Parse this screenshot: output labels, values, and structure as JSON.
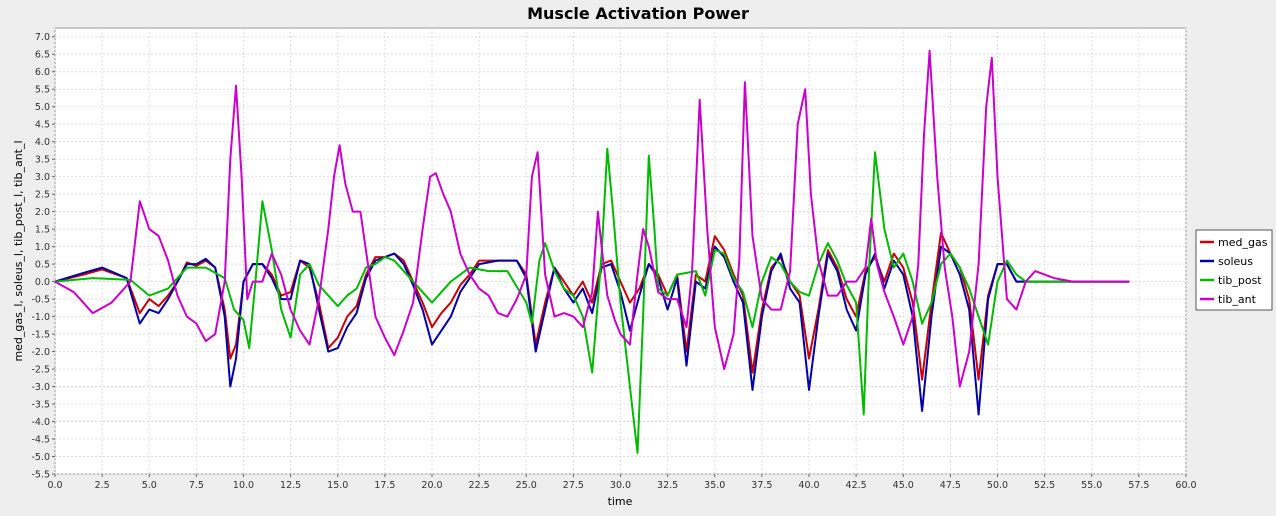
{
  "chart_data": {
    "type": "line",
    "title": "Muscle Activation Power",
    "xlabel": "time",
    "ylabel": "med_gas_l, soleus_l, tib_post_l, tib_ant_l",
    "xlim": [
      0,
      60
    ],
    "ylim": [
      -5.5,
      7.25
    ],
    "x_ticks": [
      "0.0",
      "2.5",
      "5.0",
      "7.5",
      "10.0",
      "12.5",
      "15.0",
      "17.5",
      "20.0",
      "22.5",
      "25.0",
      "27.5",
      "30.0",
      "32.5",
      "35.0",
      "37.5",
      "40.0",
      "42.5",
      "45.0",
      "47.5",
      "50.0",
      "52.5",
      "55.0",
      "57.5",
      "60.0"
    ],
    "y_ticks": [
      "-5.5",
      "-5.0",
      "-4.5",
      "-4.0",
      "-3.5",
      "-3.0",
      "-2.5",
      "-2.0",
      "-1.5",
      "-1.0",
      "-0.5",
      "0.0",
      "0.5",
      "1.0",
      "1.5",
      "2.0",
      "2.5",
      "3.0",
      "3.5",
      "4.0",
      "4.5",
      "5.0",
      "5.5",
      "6.0",
      "6.5",
      "7.0"
    ],
    "grid": true,
    "legend_position": "right",
    "series": [
      {
        "name": "med_gas",
        "color": "#cc0000",
        "x": [
          0,
          1.5,
          2.5,
          3.8,
          4.5,
          5.0,
          5.5,
          6.0,
          6.5,
          7.0,
          7.5,
          8.0,
          8.5,
          9.0,
          9.3,
          9.6,
          10.0,
          10.5,
          11.0,
          11.5,
          12.0,
          12.5,
          13.0,
          13.5,
          14.0,
          14.5,
          15.0,
          15.5,
          16.0,
          16.5,
          17.0,
          17.5,
          18.0,
          18.5,
          19.0,
          19.5,
          20.0,
          20.5,
          21.0,
          21.5,
          22.0,
          22.5,
          23.5,
          24.5,
          25.0,
          25.5,
          26.0,
          26.5,
          27.0,
          27.5,
          28.0,
          28.5,
          29.0,
          29.5,
          30.0,
          30.5,
          31.0,
          31.5,
          32.0,
          32.5,
          33.0,
          33.5,
          34.0,
          34.5,
          35.0,
          35.5,
          36.0,
          36.5,
          37.0,
          37.5,
          38.0,
          38.5,
          39.0,
          39.5,
          40.0,
          40.5,
          41.0,
          41.5,
          42.0,
          42.5,
          43.0,
          43.5,
          44.0,
          44.5,
          45.0,
          45.5,
          46.0,
          46.5,
          47.0,
          47.5,
          48.0,
          48.5,
          49.0,
          49.5,
          50.0,
          50.5,
          51.0,
          51.5,
          52.0,
          53.0,
          55.0,
          57.0
        ],
        "y": [
          0,
          0.2,
          0.35,
          0.1,
          -0.9,
          -0.5,
          -0.7,
          -0.4,
          0.0,
          0.55,
          0.45,
          0.6,
          0.4,
          -0.8,
          -2.2,
          -1.8,
          0.0,
          0.5,
          0.5,
          0.2,
          -0.4,
          -0.3,
          0.6,
          0.4,
          -0.6,
          -1.9,
          -1.6,
          -1.0,
          -0.7,
          0.2,
          0.7,
          0.7,
          0.8,
          0.6,
          0.0,
          -0.6,
          -1.3,
          -0.9,
          -0.6,
          -0.1,
          0.2,
          0.6,
          0.6,
          0.6,
          0.2,
          -1.8,
          -0.6,
          0.4,
          0.0,
          -0.4,
          0.0,
          -0.6,
          0.5,
          0.6,
          0.0,
          -0.6,
          -0.2,
          0.5,
          0.2,
          -0.4,
          0.2,
          -2.0,
          0.2,
          0.0,
          1.3,
          0.9,
          0.2,
          -0.4,
          -2.6,
          -0.8,
          0.4,
          0.7,
          0.0,
          -0.4,
          -2.2,
          -0.8,
          0.9,
          0.4,
          -0.5,
          -1.0,
          0.3,
          0.7,
          0.0,
          0.8,
          0.4,
          -0.6,
          -2.8,
          -0.6,
          1.4,
          0.8,
          0.4,
          -0.5,
          -2.8,
          -0.4,
          0.5,
          0.5,
          0.0,
          0.0,
          0.0,
          0.0,
          0.0,
          0.0
        ]
      },
      {
        "name": "soleus",
        "color": "#0000aa",
        "x": [
          0,
          1.5,
          2.5,
          3.8,
          4.5,
          5.0,
          5.5,
          6.0,
          6.5,
          7.0,
          7.5,
          8.0,
          8.5,
          9.0,
          9.3,
          9.6,
          10.0,
          10.5,
          11.0,
          11.5,
          12.0,
          12.5,
          13.0,
          13.5,
          14.0,
          14.5,
          15.0,
          15.5,
          16.0,
          16.5,
          17.0,
          17.5,
          18.0,
          18.5,
          19.0,
          19.5,
          20.0,
          20.5,
          21.0,
          21.5,
          22.0,
          22.5,
          23.5,
          24.5,
          25.0,
          25.5,
          26.0,
          26.5,
          27.0,
          27.5,
          28.0,
          28.5,
          29.0,
          29.5,
          30.0,
          30.5,
          31.0,
          31.5,
          32.0,
          32.5,
          33.0,
          33.5,
          34.0,
          34.5,
          35.0,
          35.5,
          36.0,
          36.5,
          37.0,
          37.5,
          38.0,
          38.5,
          39.0,
          39.5,
          40.0,
          40.5,
          41.0,
          41.5,
          42.0,
          42.5,
          43.0,
          43.5,
          44.0,
          44.5,
          45.0,
          45.5,
          46.0,
          46.5,
          47.0,
          47.5,
          48.0,
          48.5,
          49.0,
          49.5,
          50.0,
          50.5,
          51.0,
          51.5,
          52.0,
          53.0,
          55.0,
          57.0
        ],
        "y": [
          0,
          0.25,
          0.4,
          0.1,
          -1.2,
          -0.8,
          -0.9,
          -0.5,
          0.0,
          0.5,
          0.5,
          0.65,
          0.4,
          -1.0,
          -3.0,
          -2.2,
          0.0,
          0.5,
          0.5,
          0.1,
          -0.5,
          -0.5,
          0.6,
          0.5,
          -0.8,
          -2.0,
          -1.9,
          -1.3,
          -0.9,
          0.1,
          0.6,
          0.7,
          0.8,
          0.5,
          -0.1,
          -0.8,
          -1.8,
          -1.4,
          -1.0,
          -0.3,
          0.1,
          0.5,
          0.6,
          0.6,
          0.1,
          -2.0,
          -0.8,
          0.4,
          -0.2,
          -0.6,
          -0.2,
          -0.9,
          0.4,
          0.5,
          -0.3,
          -1.4,
          -0.4,
          0.5,
          0.1,
          -0.8,
          0.1,
          -2.4,
          0.0,
          -0.2,
          1.0,
          0.7,
          0.0,
          -0.6,
          -3.1,
          -1.0,
          0.3,
          0.8,
          -0.2,
          -0.6,
          -3.1,
          -1.0,
          0.8,
          0.3,
          -0.8,
          -1.4,
          0.2,
          0.8,
          -0.2,
          0.6,
          0.2,
          -1.0,
          -3.7,
          -1.0,
          1.0,
          0.8,
          0.2,
          -0.8,
          -3.8,
          -0.5,
          0.5,
          0.5,
          0.0,
          0.0,
          0.0,
          0.0,
          0.0,
          0.0
        ]
      },
      {
        "name": "tib_post",
        "color": "#00bb00",
        "x": [
          0,
          2.0,
          4.0,
          5.0,
          6.0,
          7.0,
          8.0,
          9.0,
          9.5,
          10.0,
          10.3,
          10.6,
          11.0,
          11.5,
          12.0,
          12.5,
          13.0,
          13.5,
          14.0,
          14.5,
          15.0,
          15.5,
          16.0,
          16.5,
          17.0,
          17.5,
          18.0,
          18.5,
          19.0,
          19.5,
          20.0,
          21.0,
          22.0,
          23.0,
          24.0,
          25.0,
          25.3,
          25.7,
          26.0,
          26.5,
          27.0,
          27.5,
          28.0,
          28.5,
          29.0,
          29.3,
          29.6,
          30.0,
          30.5,
          30.9,
          31.2,
          31.5,
          31.8,
          32.0,
          32.5,
          33.0,
          34.0,
          34.5,
          35.0,
          35.5,
          36.0,
          36.5,
          37.0,
          37.5,
          38.0,
          38.5,
          39.0,
          39.5,
          40.0,
          40.5,
          41.0,
          41.5,
          42.0,
          42.5,
          42.9,
          43.2,
          43.5,
          44.0,
          44.5,
          45.0,
          45.5,
          46.0,
          46.5,
          47.0,
          47.5,
          48.0,
          48.5,
          49.0,
          49.5,
          50.0,
          50.5,
          51.0,
          51.5,
          52.0,
          53.0,
          55.0,
          57.0
        ],
        "y": [
          0,
          0.1,
          0.05,
          -0.4,
          -0.2,
          0.4,
          0.4,
          0.1,
          -0.8,
          -1.1,
          -1.9,
          -0.2,
          2.3,
          0.9,
          -0.8,
          -1.6,
          0.2,
          0.5,
          -0.1,
          -0.4,
          -0.7,
          -0.4,
          -0.2,
          0.4,
          0.5,
          0.7,
          0.6,
          0.3,
          0.0,
          -0.3,
          -0.6,
          0.0,
          0.4,
          0.3,
          0.3,
          -0.6,
          -1.2,
          0.6,
          1.1,
          0.3,
          -0.2,
          -0.4,
          -1.0,
          -2.6,
          0.8,
          3.8,
          2.0,
          -0.6,
          -3.0,
          -4.9,
          -1.0,
          3.6,
          1.5,
          -0.2,
          -0.4,
          0.2,
          0.3,
          -0.4,
          0.9,
          0.8,
          0.1,
          -0.3,
          -1.3,
          0.0,
          0.7,
          0.5,
          0.0,
          -0.3,
          -0.4,
          0.5,
          1.1,
          0.6,
          -0.1,
          -0.6,
          -3.8,
          0.5,
          3.7,
          1.5,
          0.4,
          0.8,
          0.0,
          -1.2,
          -0.6,
          0.5,
          0.8,
          0.4,
          -0.2,
          -1.0,
          -1.8,
          0.0,
          0.6,
          0.2,
          0.0,
          0.0,
          0.0,
          0.0,
          0.0
        ]
      },
      {
        "name": "tib_ant",
        "color": "#cc00cc",
        "x": [
          0,
          1.0,
          2.0,
          3.0,
          4.0,
          4.5,
          5.0,
          5.5,
          6.0,
          6.5,
          7.0,
          7.5,
          8.0,
          8.5,
          9.0,
          9.3,
          9.6,
          9.9,
          10.2,
          10.5,
          11.0,
          11.5,
          12.0,
          12.5,
          13.0,
          13.5,
          14.0,
          14.5,
          14.8,
          15.1,
          15.4,
          15.8,
          16.2,
          16.6,
          17.0,
          17.5,
          18.0,
          18.5,
          19.0,
          19.5,
          19.9,
          20.2,
          20.6,
          21.0,
          21.5,
          22.0,
          22.5,
          23.0,
          23.5,
          24.0,
          24.5,
          25.0,
          25.3,
          25.6,
          26.0,
          26.5,
          27.0,
          27.5,
          28.0,
          28.5,
          28.8,
          29.0,
          29.3,
          29.7,
          30.0,
          30.5,
          30.9,
          31.2,
          31.5,
          32.0,
          32.5,
          33.0,
          33.5,
          33.8,
          34.2,
          34.6,
          35.0,
          35.5,
          36.0,
          36.3,
          36.6,
          37.0,
          37.5,
          38.0,
          38.5,
          39.0,
          39.4,
          39.8,
          40.1,
          40.5,
          41.0,
          41.5,
          42.0,
          42.5,
          43.0,
          43.3,
          43.6,
          44.0,
          44.5,
          45.0,
          45.5,
          45.8,
          46.1,
          46.4,
          46.8,
          47.2,
          47.6,
          48.0,
          48.5,
          49.0,
          49.4,
          49.7,
          50.0,
          50.5,
          51.0,
          51.5,
          52.0,
          53.0,
          54.0,
          55.0,
          56.0,
          57.0
        ],
        "y": [
          0.0,
          -0.3,
          -0.9,
          -0.6,
          0.0,
          2.3,
          1.5,
          1.3,
          0.6,
          -0.4,
          -1.0,
          -1.2,
          -1.7,
          -1.5,
          0.0,
          3.5,
          5.6,
          3.0,
          -0.5,
          0.0,
          0.0,
          0.8,
          0.2,
          -0.8,
          -1.4,
          -1.8,
          -0.5,
          1.5,
          3.0,
          3.9,
          2.8,
          2.0,
          2.0,
          0.5,
          -1.0,
          -1.6,
          -2.1,
          -1.4,
          -0.6,
          1.5,
          3.0,
          3.1,
          2.5,
          2.0,
          0.8,
          0.2,
          -0.2,
          -0.4,
          -0.9,
          -1.0,
          -0.5,
          0.2,
          3.0,
          3.7,
          0.2,
          -1.0,
          -0.9,
          -1.0,
          -1.3,
          -0.3,
          2.0,
          1.0,
          -0.4,
          -1.1,
          -1.5,
          -1.8,
          0.2,
          1.5,
          1.0,
          -0.3,
          -0.5,
          -0.5,
          -1.3,
          0.3,
          5.2,
          1.5,
          -1.3,
          -2.5,
          -1.5,
          0.6,
          5.7,
          1.3,
          -0.5,
          -0.8,
          -0.8,
          0.3,
          4.5,
          5.5,
          2.5,
          0.6,
          -0.4,
          -0.4,
          0.0,
          0.0,
          0.4,
          1.8,
          0.5,
          -0.3,
          -1.0,
          -1.8,
          -1.0,
          0.5,
          4.2,
          6.6,
          3.0,
          0.4,
          -1.0,
          -3.0,
          -2.0,
          0.5,
          5.0,
          6.4,
          3.0,
          -0.5,
          -0.8,
          0.0,
          0.3,
          0.1,
          0.0,
          0.0,
          0.0,
          0.0
        ]
      }
    ]
  }
}
